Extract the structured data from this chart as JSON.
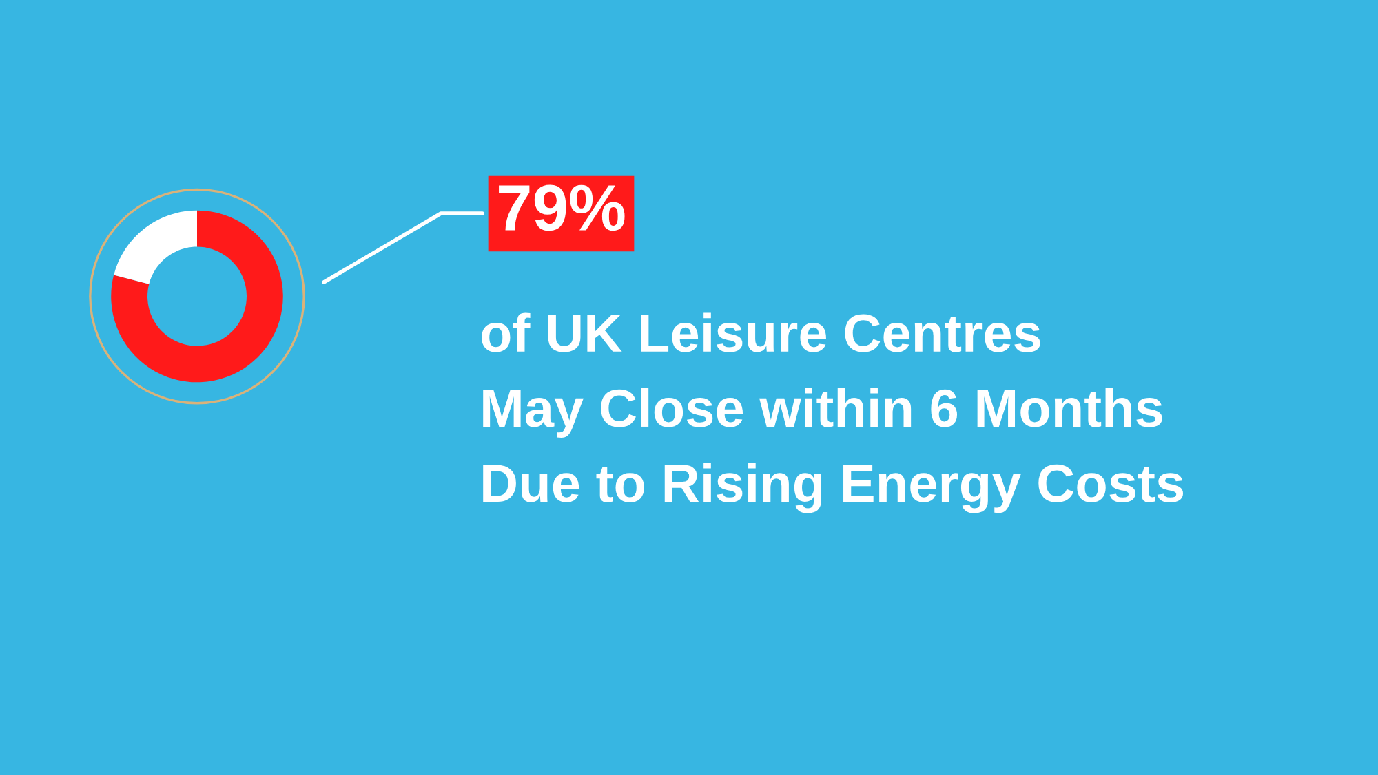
{
  "chart_data": {
    "type": "donut",
    "title": "of UK Leisure Centres\nMay Close within 6 Months\nDue to Rising Energy Costs",
    "categories": [
      null,
      null
    ],
    "values": [
      79,
      21
    ],
    "colors": [
      "#ff1a1a",
      "#ffffff"
    ],
    "value_labels": [
      "79%",
      null
    ],
    "legend": false
  }
}
